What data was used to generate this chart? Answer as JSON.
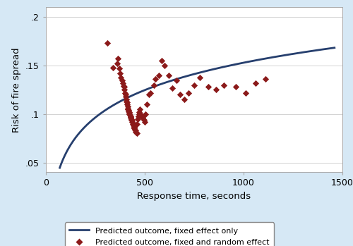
{
  "title": "",
  "xlabel": "Response time, seconds",
  "ylabel": "Risk of fire spread",
  "xlim": [
    0,
    1500
  ],
  "ylim": [
    0.04,
    0.21
  ],
  "yticks": [
    0.05,
    0.1,
    0.15,
    0.2
  ],
  "ytick_labels": [
    ".05",
    ".1",
    ".15",
    ".2"
  ],
  "xticks": [
    0,
    500,
    1000,
    1500
  ],
  "figure_bg_color": "#d6e8f5",
  "plot_bg_color": "#ffffff",
  "curve_color": "#263f6e",
  "curve_linewidth": 2.0,
  "scatter_color": "#8b1a1a",
  "scatter_marker": "D",
  "scatter_size": 22,
  "legend_line_label": "Predicted outcome, fixed effect only",
  "legend_scatter_label": "Predicted outcome, fixed and random effect",
  "curve_a": 0.040765,
  "curve_b": -0.12865,
  "scatter_x": [
    310,
    340,
    360,
    365,
    370,
    375,
    380,
    385,
    390,
    392,
    395,
    398,
    400,
    402,
    405,
    407,
    408,
    410,
    412,
    413,
    415,
    415,
    417,
    418,
    420,
    422,
    423,
    425,
    427,
    428,
    430,
    432,
    433,
    435,
    437,
    438,
    440,
    442,
    443,
    445,
    447,
    448,
    450,
    452,
    455,
    457,
    460,
    462,
    465,
    467,
    470,
    472,
    475,
    480,
    485,
    490,
    495,
    500,
    505,
    510,
    520,
    530,
    545,
    555,
    570,
    585,
    600,
    620,
    640,
    660,
    680,
    700,
    720,
    750,
    780,
    820,
    860,
    900,
    960,
    1010,
    1060,
    1110
  ],
  "scatter_y": [
    0.173,
    0.148,
    0.152,
    0.157,
    0.147,
    0.142,
    0.138,
    0.135,
    0.132,
    0.129,
    0.128,
    0.125,
    0.122,
    0.12,
    0.118,
    0.115,
    0.113,
    0.112,
    0.11,
    0.108,
    0.106,
    0.105,
    0.104,
    0.103,
    0.102,
    0.101,
    0.1,
    0.099,
    0.098,
    0.097,
    0.096,
    0.095,
    0.094,
    0.093,
    0.092,
    0.091,
    0.09,
    0.089,
    0.088,
    0.087,
    0.086,
    0.085,
    0.084,
    0.083,
    0.082,
    0.081,
    0.08,
    0.09,
    0.095,
    0.098,
    0.1,
    0.102,
    0.105,
    0.1,
    0.098,
    0.096,
    0.094,
    0.092,
    0.1,
    0.11,
    0.12,
    0.122,
    0.13,
    0.136,
    0.14,
    0.155,
    0.15,
    0.14,
    0.127,
    0.135,
    0.12,
    0.115,
    0.122,
    0.13,
    0.138,
    0.128,
    0.125,
    0.13,
    0.128,
    0.122,
    0.132,
    0.136
  ]
}
